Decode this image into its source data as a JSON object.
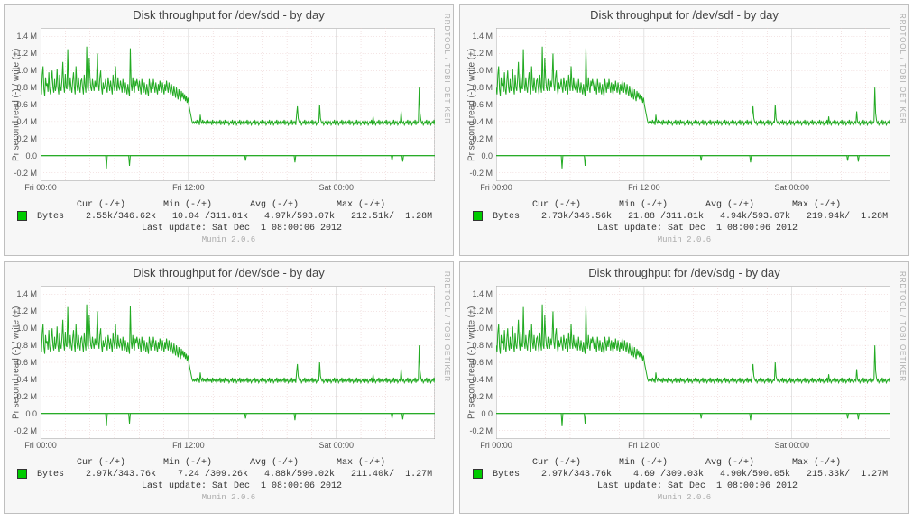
{
  "watermark": "RRDTOOL / TOBI OETIKER",
  "munin_version": "Munin 2.0.6",
  "ylabel": "Pr second read (-) / write (+)",
  "chart_style": {
    "line_color": "#22aa22",
    "line_width": 1,
    "grid_color_major": "#c8c8c8",
    "grid_color_minor": "#e8c8c8",
    "zero_line_color": "#22aa22",
    "plot_bg": "#ffffff",
    "panel_bg": "#f7f7f7",
    "border_color": "#999999",
    "swatch_color": "#00cc00",
    "title_fontsize": 13,
    "tick_fontsize": 9,
    "legend_fontsize": 10
  },
  "yaxis": {
    "min": -0.3,
    "max": 1.5,
    "ticks": [
      -0.2,
      0.0,
      0.2,
      0.4,
      0.6,
      0.8,
      1.0,
      1.2,
      1.4
    ],
    "tick_labels": [
      "-0.2 M",
      "0.0",
      "0.2 M",
      "0.4 M",
      "0.6 M",
      "0.8 M",
      "1.0 M",
      "1.2 M",
      "1.4 M"
    ]
  },
  "xaxis": {
    "ticks": [
      0,
      180,
      360
    ],
    "tick_labels": [
      "Fri 00:00",
      "Fri 12:00",
      "Sat 00:00"
    ],
    "range": 480,
    "minor_step": 30
  },
  "series_data": [
    0.8,
    0.72,
    0.95,
    1.05,
    0.78,
    0.7,
    0.92,
    0.82,
    0.85,
    0.75,
    0.98,
    0.78,
    0.72,
    0.88,
    1.0,
    0.8,
    0.74,
    0.9,
    0.76,
    0.82,
    1.02,
    0.8,
    0.72,
    0.95,
    0.8,
    0.76,
    0.9,
    1.1,
    0.82,
    0.74,
    0.96,
    0.8,
    0.78,
    1.25,
    0.84,
    0.76,
    0.92,
    0.8,
    0.74,
    0.88,
    0.98,
    0.8,
    0.72,
    1.05,
    0.84,
    0.76,
    0.92,
    0.8,
    0.74,
    0.88,
    0.9,
    0.8,
    0.72,
    0.95,
    0.82,
    0.74,
    1.28,
    0.8,
    0.76,
    1.15,
    0.92,
    0.8,
    0.76,
    0.9,
    0.82,
    0.76,
    0.88,
    0.8,
    0.9,
    1.2,
    0.84,
    0.76,
    0.92,
    1.0,
    0.8,
    0.72,
    0.86,
    0.78,
    0.82,
    0.9,
    0.8,
    0.74,
    0.92,
    0.84,
    0.76,
    0.88,
    0.8,
    0.72,
    0.95,
    0.84,
    0.76,
    1.05,
    0.84,
    0.76,
    0.92,
    0.8,
    0.78,
    0.88,
    0.82,
    0.74,
    0.9,
    0.8,
    0.74,
    0.86,
    0.78,
    0.72,
    0.84,
    0.76,
    0.7,
    1.26,
    0.84,
    0.76,
    0.92,
    0.8,
    0.74,
    0.88,
    0.82,
    0.9,
    0.84,
    0.76,
    0.88,
    0.8,
    0.72,
    0.9,
    0.82,
    0.74,
    0.86,
    0.78,
    0.72,
    0.84,
    0.76,
    0.7,
    0.9,
    0.82,
    0.74,
    0.86,
    0.78,
    0.9,
    0.82,
    0.74,
    0.86,
    0.78,
    0.72,
    0.84,
    0.76,
    0.88,
    0.8,
    0.74,
    0.86,
    0.78,
    0.72,
    0.84,
    0.76,
    0.88,
    0.8,
    0.74,
    0.86,
    0.78,
    0.72,
    0.84,
    0.76,
    0.7,
    0.82,
    0.74,
    0.68,
    0.8,
    0.72,
    0.66,
    0.78,
    0.7,
    0.64,
    0.76,
    0.68,
    0.74,
    0.66,
    0.72,
    0.64,
    0.7,
    0.62,
    0.68,
    0.6,
    0.55,
    0.5,
    0.45,
    0.4,
    0.38,
    0.4,
    0.38,
    0.4,
    0.38,
    0.42,
    0.38,
    0.4,
    0.36,
    0.48,
    0.4,
    0.38,
    0.42,
    0.38,
    0.4,
    0.38,
    0.4,
    0.36,
    0.42,
    0.38,
    0.4,
    0.38,
    0.4,
    0.36,
    0.42,
    0.38,
    0.4,
    0.38,
    0.4,
    0.36,
    0.38,
    0.4,
    0.38,
    0.42,
    0.36,
    0.4,
    0.38,
    0.4,
    0.36,
    0.42,
    0.38,
    0.4,
    0.38,
    0.4,
    0.36,
    0.38,
    0.4,
    0.38,
    0.42,
    0.36,
    0.4,
    0.38,
    0.4,
    0.36,
    0.38,
    0.4,
    0.38,
    0.42,
    0.36,
    0.4,
    0.38,
    0.4,
    0.36,
    0.38,
    0.4,
    0.38,
    0.42,
    0.36,
    0.4,
    0.38,
    0.4,
    0.36,
    0.38,
    0.4,
    0.38,
    0.42,
    0.36,
    0.4,
    0.38,
    0.4,
    0.36,
    0.38,
    0.4,
    0.38,
    0.42,
    0.36,
    0.4,
    0.38,
    0.4,
    0.36,
    0.38,
    0.4,
    0.38,
    0.42,
    0.36,
    0.4,
    0.38,
    0.4,
    0.36,
    0.38,
    0.4,
    0.38,
    0.42,
    0.36,
    0.4,
    0.38,
    0.4,
    0.36,
    0.38,
    0.4,
    0.38,
    0.42,
    0.36,
    0.4,
    0.38,
    0.4,
    0.36,
    0.38,
    0.4,
    0.38,
    0.42,
    0.36,
    0.4,
    0.38,
    0.4,
    0.36,
    0.48,
    0.58,
    0.44,
    0.4,
    0.38,
    0.4,
    0.36,
    0.38,
    0.4,
    0.38,
    0.42,
    0.36,
    0.4,
    0.38,
    0.4,
    0.36,
    0.38,
    0.4,
    0.38,
    0.42,
    0.36,
    0.4,
    0.38,
    0.4,
    0.36,
    0.38,
    0.4,
    0.38,
    0.6,
    0.44,
    0.4,
    0.38,
    0.4,
    0.36,
    0.38,
    0.4,
    0.38,
    0.42,
    0.36,
    0.4,
    0.38,
    0.4,
    0.36,
    0.38,
    0.4,
    0.38,
    0.42,
    0.36,
    0.4,
    0.38,
    0.4,
    0.36,
    0.38,
    0.4,
    0.38,
    0.42,
    0.36,
    0.4,
    0.38,
    0.4,
    0.36,
    0.38,
    0.4,
    0.38,
    0.42,
    0.36,
    0.4,
    0.38,
    0.4,
    0.36,
    0.38,
    0.4,
    0.38,
    0.42,
    0.36,
    0.4,
    0.38,
    0.4,
    0.36,
    0.38,
    0.4,
    0.38,
    0.42,
    0.36,
    0.4,
    0.38,
    0.4,
    0.36,
    0.38,
    0.4,
    0.38,
    0.42,
    0.36,
    0.46,
    0.38,
    0.4,
    0.36,
    0.38,
    0.4,
    0.38,
    0.42,
    0.36,
    0.4,
    0.38,
    0.4,
    0.36,
    0.38,
    0.4,
    0.38,
    0.42,
    0.36,
    0.4,
    0.38,
    0.4,
    0.36,
    0.38,
    0.4,
    0.38,
    0.42,
    0.36,
    0.4,
    0.38,
    0.4,
    0.36,
    0.38,
    0.4,
    0.38,
    0.52,
    0.4,
    0.38,
    0.4,
    0.36,
    0.38,
    0.4,
    0.38,
    0.42,
    0.36,
    0.4,
    0.38,
    0.4,
    0.36,
    0.38,
    0.4,
    0.38,
    0.42,
    0.36,
    0.4,
    0.38,
    0.4,
    0.8,
    0.5,
    0.42,
    0.38,
    0.4,
    0.36,
    0.38,
    0.4,
    0.38,
    0.42,
    0.36,
    0.4,
    0.38,
    0.4,
    0.36,
    0.38,
    0.4,
    0.38,
    0.42,
    0.36
  ],
  "neg_series": [
    0,
    0,
    0,
    0,
    0,
    0,
    0,
    0,
    0,
    0,
    0,
    0,
    0,
    0,
    0,
    0,
    0,
    0,
    0,
    0,
    0,
    0,
    0,
    0,
    0,
    0,
    0,
    0,
    0,
    0,
    0,
    0,
    0,
    0,
    0,
    0,
    0,
    0,
    0,
    0,
    0,
    0,
    0,
    0,
    0,
    0,
    0,
    0,
    0,
    0,
    0,
    0,
    0,
    0,
    0,
    0,
    0,
    0,
    0,
    0,
    0,
    0,
    0,
    0,
    0,
    0,
    0,
    0,
    0,
    0,
    0,
    0,
    0,
    0,
    0,
    0,
    0,
    0,
    0,
    0,
    -0.15,
    0,
    0,
    0,
    0,
    0,
    0,
    0,
    0,
    0,
    0,
    0,
    0,
    0,
    0,
    0,
    0,
    0,
    0,
    0,
    0,
    0,
    0,
    0,
    0,
    0,
    0,
    0,
    -0.12,
    0,
    0,
    0,
    0,
    0,
    0,
    0,
    0,
    0,
    0,
    0,
    0,
    0,
    0,
    0,
    0,
    0,
    0,
    0,
    0,
    0,
    0,
    0,
    0,
    0,
    0,
    0,
    0,
    0,
    0,
    0,
    0,
    0,
    0,
    0,
    0,
    0,
    0,
    0,
    0,
    0,
    0,
    0,
    0,
    0,
    0,
    0,
    0,
    0,
    0,
    0,
    0,
    0,
    0,
    0,
    0,
    0,
    0,
    0,
    0,
    0,
    0,
    0,
    0,
    0,
    0,
    0,
    0,
    0,
    0,
    0,
    0,
    0,
    0,
    0,
    0,
    0,
    0,
    0,
    0,
    0,
    0,
    0,
    0,
    0,
    0,
    0,
    0,
    0,
    0,
    0,
    0,
    0,
    0,
    0,
    0,
    0,
    0,
    0,
    0,
    0,
    0,
    0,
    0,
    0,
    0,
    0,
    0,
    0,
    0,
    0,
    0,
    0,
    0,
    0,
    0,
    0,
    0,
    0,
    0,
    0,
    0,
    0,
    0,
    0,
    0,
    0,
    0,
    0,
    0,
    0,
    0,
    0,
    0,
    0,
    0,
    0,
    0,
    0,
    0,
    -0.06,
    0,
    0,
    0,
    0,
    0,
    0,
    0,
    0,
    0,
    0,
    0,
    0,
    0,
    0,
    0,
    0,
    0,
    0,
    0,
    0,
    0,
    0,
    0,
    0,
    0,
    0,
    0,
    0,
    0,
    0,
    0,
    0,
    0,
    0,
    0,
    0,
    0,
    0,
    0,
    0,
    0,
    0,
    0,
    0,
    0,
    0,
    0,
    0,
    0,
    0,
    0,
    0,
    0,
    0,
    0,
    0,
    0,
    0,
    0,
    -0.08,
    0,
    0,
    0,
    0,
    0,
    0,
    0,
    0,
    0,
    0,
    0,
    0,
    0,
    0,
    0,
    0,
    0,
    0,
    0,
    0,
    0,
    0,
    0,
    0,
    0,
    0,
    0,
    0,
    0,
    0,
    0,
    0,
    0,
    0,
    0,
    0,
    0,
    0,
    0,
    0,
    0,
    0,
    0,
    0,
    0,
    0,
    0,
    0,
    0,
    0,
    0,
    0,
    0,
    0,
    0,
    0,
    0,
    0,
    0,
    0,
    0,
    0,
    0,
    0,
    0,
    0,
    0,
    0,
    0,
    0,
    0,
    0,
    0,
    0,
    0,
    0,
    0,
    0,
    0,
    0,
    0,
    0,
    0,
    0,
    0,
    0,
    0,
    0,
    0,
    0,
    0,
    0,
    0,
    0,
    0,
    0,
    0,
    0,
    0,
    0,
    0,
    0,
    0,
    0,
    0,
    0,
    0,
    0,
    0,
    0,
    0,
    0,
    0,
    0,
    0,
    0,
    0,
    -0.06,
    0,
    0,
    0,
    0,
    0,
    0,
    0,
    0,
    0,
    0,
    0,
    0,
    -0.07,
    0,
    0,
    0,
    0,
    0,
    0,
    0,
    0,
    0,
    0,
    0,
    0,
    0,
    0,
    0,
    0,
    0,
    0,
    0,
    0,
    0,
    0,
    0,
    0,
    0,
    0,
    0,
    0,
    0,
    0,
    0,
    0,
    0,
    0,
    0,
    0,
    0,
    0,
    0
  ],
  "panels": [
    {
      "title": "Disk throughput for /dev/sdd - by day",
      "stats_header": "           Cur (-/+)       Min (-/+)       Avg (-/+)       Max (-/+)",
      "stats_row": " Bytes    2.55k/346.62k   10.04 /311.81k   4.97k/593.07k   212.51k/  1.28M",
      "last_update": "                       Last update: Sat Dec  1 08:00:06 2012"
    },
    {
      "title": "Disk throughput for /dev/sdf - by day",
      "stats_header": "           Cur (-/+)       Min (-/+)       Avg (-/+)       Max (-/+)",
      "stats_row": " Bytes    2.73k/346.56k   21.88 /311.81k   4.94k/593.07k   219.94k/  1.28M",
      "last_update": "                       Last update: Sat Dec  1 08:00:06 2012"
    },
    {
      "title": "Disk throughput for /dev/sde - by day",
      "stats_header": "           Cur (-/+)       Min (-/+)       Avg (-/+)       Max (-/+)",
      "stats_row": " Bytes    2.97k/343.76k    7.24 /309.26k   4.88k/590.02k   211.40k/  1.27M",
      "last_update": "                       Last update: Sat Dec  1 08:00:06 2012"
    },
    {
      "title": "Disk throughput for /dev/sdg - by day",
      "stats_header": "           Cur (-/+)       Min (-/+)       Avg (-/+)       Max (-/+)",
      "stats_row": " Bytes    2.97k/343.76k    4.69 /309.03k   4.90k/590.05k   215.33k/  1.27M",
      "last_update": "                       Last update: Sat Dec  1 08:00:06 2012"
    }
  ]
}
